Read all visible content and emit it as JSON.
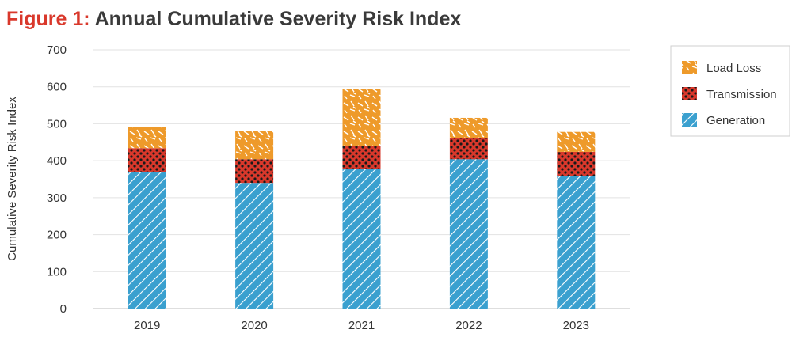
{
  "chart_data": {
    "type": "bar",
    "stacked": true,
    "title_prefix": "Figure 1:",
    "title": "Annual Cumulative Severity Risk Index",
    "xlabel": "",
    "ylabel": "Cumulative Severity Risk Index",
    "categories": [
      "2019",
      "2020",
      "2021",
      "2022",
      "2023"
    ],
    "ylim": [
      0,
      700
    ],
    "yticks": [
      "0",
      "100",
      "200",
      "300",
      "400",
      "500",
      "600",
      "700"
    ],
    "grid": true,
    "legend_position": "right",
    "series": [
      {
        "name": "Generation",
        "values": [
          370,
          340,
          377,
          404,
          359
        ],
        "color": "#3aa0cf",
        "pattern": "diagonal-stripes"
      },
      {
        "name": "Transmission",
        "values": [
          64,
          64,
          62,
          57,
          65
        ],
        "color": "#d9382b",
        "pattern": "dots"
      },
      {
        "name": "Load Loss",
        "values": [
          58,
          76,
          154,
          55,
          54
        ],
        "color": "#ee9a2a",
        "pattern": "dashes"
      }
    ],
    "legend_order": [
      "Load Loss",
      "Transmission",
      "Generation"
    ]
  }
}
